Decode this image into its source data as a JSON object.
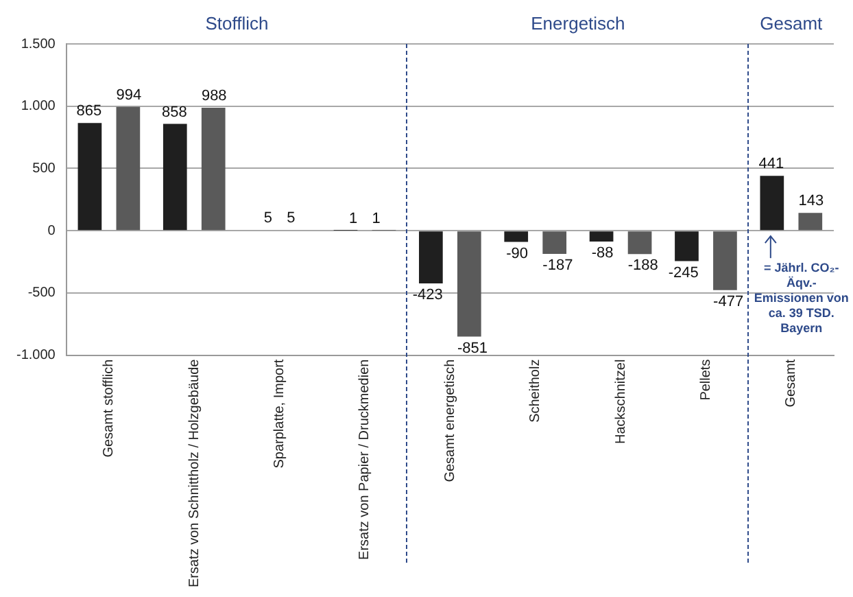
{
  "chart_data": {
    "type": "bar",
    "categories": [
      "Gesamt stofflich",
      "Ersatz von Schnittholz / Holzgebäude",
      "Sparplatte, Import",
      "Ersatz von Papier / Druckmedien",
      "Gesamt energetisch",
      "Scheitholz",
      "Hackschnitzel",
      "Pellets",
      "Gesamt"
    ],
    "series": [
      {
        "color": "#1f1f1f",
        "values": [
          865,
          858,
          5,
          1,
          -423,
          -90,
          -88,
          -245,
          441
        ]
      },
      {
        "color": "#5a5a5a",
        "values": [
          994,
          988,
          5,
          1,
          -851,
          -187,
          -188,
          -477,
          143
        ]
      }
    ],
    "ylim": [
      -1000,
      1500
    ],
    "yticks": [
      {
        "value": -1000,
        "label": "-1.000"
      },
      {
        "value": -500,
        "label": "-500"
      },
      {
        "value": 0,
        "label": "0"
      },
      {
        "value": 500,
        "label": "500"
      },
      {
        "value": 1000,
        "label": "1.000"
      },
      {
        "value": 1500,
        "label": "1.500"
      }
    ],
    "grid": "y",
    "legend": false,
    "data_labels": true,
    "annotations": [
      "Stofflich",
      "Energetisch",
      "Gesamt",
      "= Jährl. CO₂-Äqv.-Emissionen von ca. 39 TSD. Bayern"
    ]
  }
}
